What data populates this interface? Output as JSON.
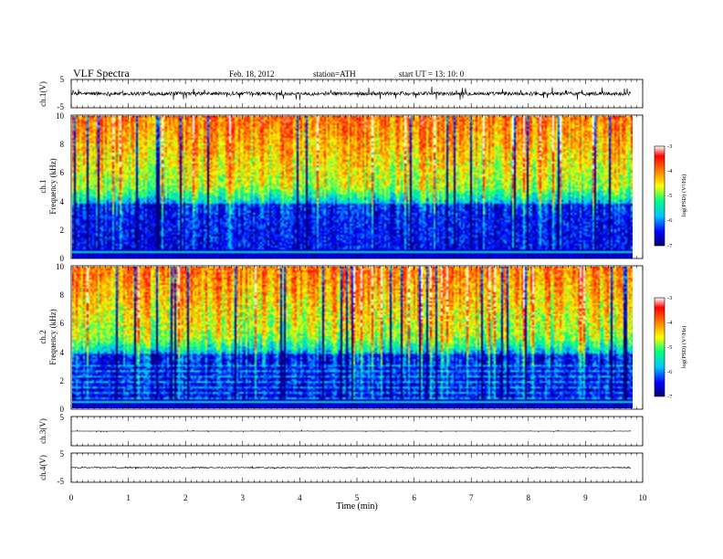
{
  "header": {
    "title": "VLF Spectra",
    "date": "Feb. 18, 2012",
    "station": "station=ATH",
    "start": "start  UT  =   13: 10: 0"
  },
  "chart_data": [
    {
      "id": "ch1-waveform",
      "type": "line",
      "ylabel": "ch.1(V)",
      "ylim": [
        -5,
        5
      ],
      "yticks": [
        "5",
        "-5"
      ],
      "description_free": true,
      "x_range_min": [
        0,
        9.8
      ],
      "baseline": 0,
      "noise_amplitude": 1.3,
      "spike_amplitude": 2.6
    },
    {
      "id": "ch1-spectrogram",
      "type": "heatmap",
      "ylabel": "ch.1",
      "ylabel2": "Frequency  (kHz)",
      "ylim": [
        0,
        10
      ],
      "yticks": [
        "10",
        "8",
        "6",
        "4",
        "2",
        "0"
      ],
      "colorbar_label": "log(PSD) (V²/Hz)",
      "colorbar_ticks": [
        "-3",
        "-4",
        "-5",
        "-6",
        "-7"
      ],
      "x_range_min": [
        0,
        9.8
      ]
    },
    {
      "id": "ch2-spectrogram",
      "type": "heatmap",
      "ylabel": "ch.2",
      "ylabel2": "Frequency  (kHz)",
      "ylim": [
        0,
        10
      ],
      "yticks": [
        "10",
        "8",
        "6",
        "4",
        "2",
        "0"
      ],
      "colorbar_label": "log(PSD) (V²/Hz)",
      "colorbar_ticks": [
        "-3",
        "-4",
        "-5",
        "-6",
        "-7"
      ],
      "x_range_min": [
        0,
        9.8
      ]
    },
    {
      "id": "ch3-waveform",
      "type": "line",
      "ylabel": "ch.3(V)",
      "ylim": [
        -5,
        5
      ],
      "yticks": [
        "5"
      ],
      "x_range_min": [
        0,
        9.8
      ],
      "baseline": 0,
      "noise_amplitude": 0.08,
      "spike_amplitude": 0.3
    },
    {
      "id": "ch4-waveform",
      "type": "line",
      "ylabel": "ch.4(V)",
      "ylim": [
        -5,
        5
      ],
      "yticks": [
        "5",
        "-5"
      ],
      "x_range_min": [
        0,
        9.8
      ],
      "baseline": 0,
      "noise_amplitude": 0.35,
      "spike_amplitude": 0.4
    }
  ],
  "xaxis": {
    "label": "Time  (min)",
    "range": [
      0,
      10
    ],
    "ticks": [
      "0",
      "1",
      "2",
      "3",
      "4",
      "5",
      "6",
      "7",
      "8",
      "9",
      "10"
    ]
  },
  "colors": {
    "colormap": [
      "#000070",
      "#0000ff",
      "#00c8ff",
      "#00ff80",
      "#ffff00",
      "#ff8000",
      "#ff0000",
      "#ffffff"
    ]
  }
}
